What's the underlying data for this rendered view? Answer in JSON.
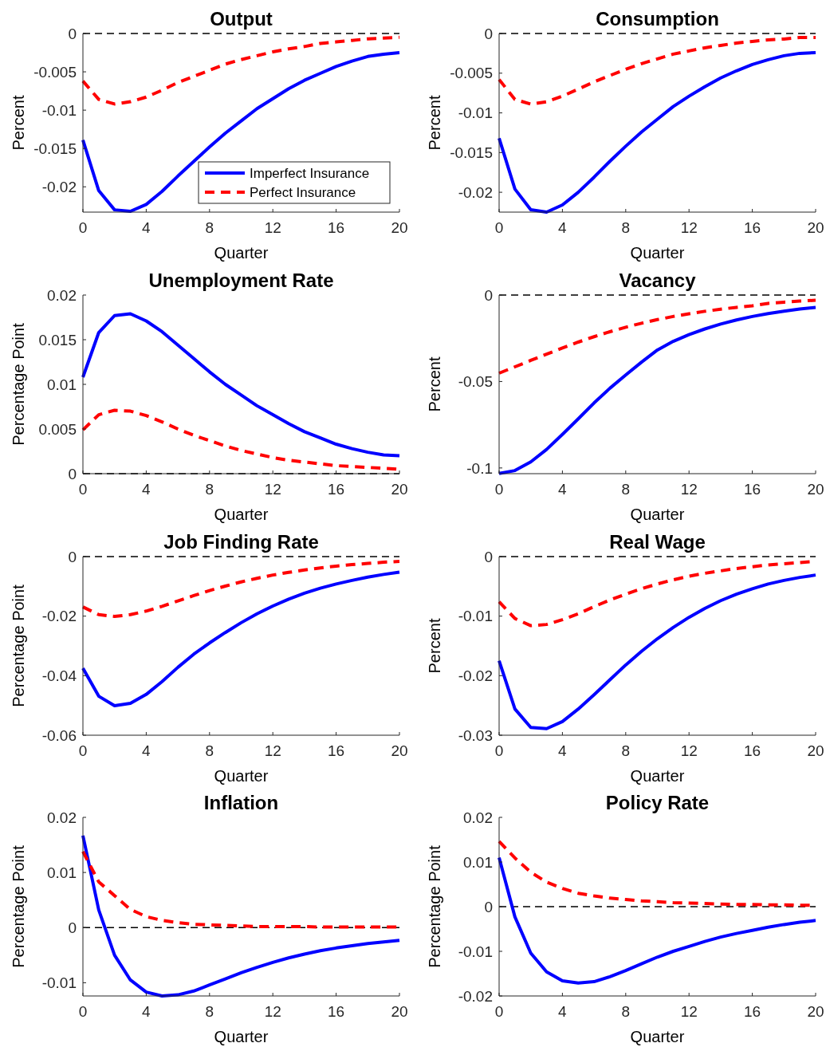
{
  "chart_data": [
    {
      "type": "line",
      "title": "Output",
      "xlabel": "Quarter",
      "ylabel": "Percent",
      "x": [
        0,
        1,
        2,
        3,
        4,
        5,
        6,
        7,
        8,
        9,
        10,
        11,
        12,
        13,
        14,
        15,
        16,
        17,
        18,
        19,
        20
      ],
      "xlim": [
        0,
        20
      ],
      "xticks": [
        0,
        4,
        8,
        12,
        16,
        20
      ],
      "ylim": [
        -0.0233,
        0
      ],
      "yticks": [
        -0.02,
        -0.015,
        -0.01,
        -0.005,
        0
      ],
      "legend": "bottom right",
      "ref_lines": [
        {
          "axis": "y",
          "value": 0,
          "color": "#000000",
          "line_style": "dashed"
        }
      ],
      "series": [
        {
          "name": "Imperfect Insurance",
          "color": "#0000ff",
          "line_style": "solid",
          "values": [
            -0.0139,
            -0.0205,
            -0.023,
            -0.0232,
            -0.0223,
            -0.0206,
            -0.0186,
            -0.0167,
            -0.0148,
            -0.013,
            -0.0114,
            -0.0098,
            -0.0085,
            -0.0072,
            -0.0061,
            -0.0052,
            -0.0043,
            -0.0036,
            -0.003,
            -0.0027,
            -0.0025
          ]
        },
        {
          "name": "Perfect Insurance",
          "color": "#ff0000",
          "line_style": "dashed",
          "values": [
            -0.0062,
            -0.0086,
            -0.0092,
            -0.0089,
            -0.0083,
            -0.0074,
            -0.0064,
            -0.0056,
            -0.0048,
            -0.004,
            -0.0034,
            -0.0029,
            -0.0024,
            -0.002,
            -0.0017,
            -0.0013,
            -0.0011,
            -0.0009,
            -0.0007,
            -0.0006,
            -0.0005
          ]
        }
      ]
    },
    {
      "type": "line",
      "title": "Consumption",
      "xlabel": "Quarter",
      "ylabel": "Percent",
      "x": [
        0,
        1,
        2,
        3,
        4,
        5,
        6,
        7,
        8,
        9,
        10,
        11,
        12,
        13,
        14,
        15,
        16,
        17,
        18,
        19,
        20
      ],
      "xlim": [
        0,
        20
      ],
      "xticks": [
        0,
        4,
        8,
        12,
        16,
        20
      ],
      "ylim": [
        -0.0225,
        0
      ],
      "yticks": [
        -0.02,
        -0.015,
        -0.01,
        -0.005,
        0
      ],
      "ref_lines": [
        {
          "axis": "y",
          "value": 0,
          "color": "#000000",
          "line_style": "dashed"
        }
      ],
      "series": [
        {
          "color": "#0000ff",
          "line_style": "solid",
          "values": [
            -0.0132,
            -0.0196,
            -0.0222,
            -0.0225,
            -0.0216,
            -0.02,
            -0.0181,
            -0.0161,
            -0.0142,
            -0.0124,
            -0.0108,
            -0.0092,
            -0.0079,
            -0.0067,
            -0.0056,
            -0.0047,
            -0.0039,
            -0.0033,
            -0.0028,
            -0.0025,
            -0.0024
          ]
        },
        {
          "color": "#ff0000",
          "line_style": "dashed",
          "values": [
            -0.0058,
            -0.0083,
            -0.0089,
            -0.0086,
            -0.0079,
            -0.007,
            -0.0061,
            -0.0053,
            -0.0045,
            -0.0038,
            -0.0032,
            -0.0026,
            -0.0022,
            -0.0018,
            -0.0015,
            -0.0012,
            -0.001,
            -0.0008,
            -0.0007,
            -0.0005,
            -0.0005
          ]
        }
      ]
    },
    {
      "type": "line",
      "title": "Unemployment Rate",
      "xlabel": "Quarter",
      "ylabel": "Percentage Point",
      "x": [
        0,
        1,
        2,
        3,
        4,
        5,
        6,
        7,
        8,
        9,
        10,
        11,
        12,
        13,
        14,
        15,
        16,
        17,
        18,
        19,
        20
      ],
      "xlim": [
        0,
        20
      ],
      "xticks": [
        0,
        4,
        8,
        12,
        16,
        20
      ],
      "ylim": [
        0,
        0.02
      ],
      "yticks": [
        0,
        0.005,
        0.01,
        0.015,
        0.02
      ],
      "ref_lines": [
        {
          "axis": "y",
          "value": 0,
          "color": "#000000",
          "line_style": "dashed"
        }
      ],
      "series": [
        {
          "color": "#0000ff",
          "line_style": "solid",
          "values": [
            0.0108,
            0.0158,
            0.0177,
            0.0179,
            0.0171,
            0.0159,
            0.0144,
            0.0129,
            0.0114,
            0.01,
            0.0088,
            0.0076,
            0.0066,
            0.0056,
            0.0047,
            0.004,
            0.0033,
            0.0028,
            0.0024,
            0.0021,
            0.002
          ]
        },
        {
          "color": "#ff0000",
          "line_style": "dashed",
          "values": [
            0.0049,
            0.0066,
            0.0071,
            0.007,
            0.0065,
            0.0058,
            0.005,
            0.0043,
            0.0037,
            0.0031,
            0.0026,
            0.0022,
            0.0018,
            0.0015,
            0.0013,
            0.0011,
            0.0009,
            0.0008,
            0.0007,
            0.0006,
            0.0005
          ]
        }
      ]
    },
    {
      "type": "line",
      "title": "Vacancy",
      "xlabel": "Quarter",
      "ylabel": "Percent",
      "x": [
        0,
        1,
        2,
        3,
        4,
        5,
        6,
        7,
        8,
        9,
        10,
        11,
        12,
        13,
        14,
        15,
        16,
        17,
        18,
        19,
        20
      ],
      "xlim": [
        0,
        20
      ],
      "xticks": [
        0,
        4,
        8,
        12,
        16,
        20
      ],
      "ylim": [
        -0.1033,
        0
      ],
      "yticks": [
        -0.1,
        -0.05,
        0
      ],
      "ref_lines": [
        {
          "axis": "y",
          "value": 0,
          "color": "#000000",
          "line_style": "dashed"
        }
      ],
      "series": [
        {
          "color": "#0000ff",
          "line_style": "solid",
          "values": [
            -0.1032,
            -0.1015,
            -0.0965,
            -0.0893,
            -0.0806,
            -0.0716,
            -0.0624,
            -0.0539,
            -0.0462,
            -0.0388,
            -0.0318,
            -0.0268,
            -0.0229,
            -0.0196,
            -0.0168,
            -0.0144,
            -0.0124,
            -0.0107,
            -0.0093,
            -0.0081,
            -0.0072
          ]
        },
        {
          "color": "#ff0000",
          "line_style": "dashed",
          "values": [
            -0.0452,
            -0.0415,
            -0.0378,
            -0.0342,
            -0.0306,
            -0.0272,
            -0.0241,
            -0.0212,
            -0.0186,
            -0.0163,
            -0.0142,
            -0.0124,
            -0.0108,
            -0.0094,
            -0.0082,
            -0.0071,
            -0.0062,
            -0.0048,
            -0.0041,
            -0.0035,
            -0.003
          ]
        }
      ]
    },
    {
      "type": "line",
      "title": "Job Finding Rate",
      "xlabel": "Quarter",
      "ylabel": "Percentage Point",
      "x": [
        0,
        1,
        2,
        3,
        4,
        5,
        6,
        7,
        8,
        9,
        10,
        11,
        12,
        13,
        14,
        15,
        16,
        17,
        18,
        19,
        20
      ],
      "xlim": [
        0,
        20
      ],
      "xticks": [
        0,
        4,
        8,
        12,
        16,
        20
      ],
      "ylim": [
        -0.06,
        0
      ],
      "yticks": [
        -0.06,
        -0.04,
        -0.02,
        0
      ],
      "ref_lines": [
        {
          "axis": "y",
          "value": 0,
          "color": "#000000",
          "line_style": "dashed"
        }
      ],
      "series": [
        {
          "color": "#0000ff",
          "line_style": "solid",
          "values": [
            -0.0375,
            -0.0469,
            -0.0501,
            -0.0493,
            -0.0463,
            -0.042,
            -0.0372,
            -0.0328,
            -0.029,
            -0.0255,
            -0.0222,
            -0.0192,
            -0.0166,
            -0.0143,
            -0.0123,
            -0.0106,
            -0.0092,
            -0.008,
            -0.0069,
            -0.006,
            -0.0052
          ]
        },
        {
          "color": "#ff0000",
          "line_style": "dashed",
          "values": [
            -0.0169,
            -0.0195,
            -0.0201,
            -0.0195,
            -0.0183,
            -0.0167,
            -0.0149,
            -0.0131,
            -0.0114,
            -0.0099,
            -0.0085,
            -0.0073,
            -0.0062,
            -0.0053,
            -0.0045,
            -0.0038,
            -0.0032,
            -0.0027,
            -0.0023,
            -0.0019,
            -0.0016
          ]
        }
      ]
    },
    {
      "type": "line",
      "title": "Real Wage",
      "xlabel": "Quarter",
      "ylabel": "Percent",
      "x": [
        0,
        1,
        2,
        3,
        4,
        5,
        6,
        7,
        8,
        9,
        10,
        11,
        12,
        13,
        14,
        15,
        16,
        17,
        18,
        19,
        20
      ],
      "xlim": [
        0,
        20
      ],
      "xticks": [
        0,
        4,
        8,
        12,
        16,
        20
      ],
      "ylim": [
        -0.03,
        0
      ],
      "yticks": [
        -0.03,
        -0.02,
        -0.01,
        0
      ],
      "ref_lines": [
        {
          "axis": "y",
          "value": 0,
          "color": "#000000",
          "line_style": "dashed"
        }
      ],
      "series": [
        {
          "color": "#0000ff",
          "line_style": "solid",
          "values": [
            -0.0175,
            -0.0256,
            -0.0287,
            -0.0289,
            -0.0277,
            -0.0256,
            -0.0232,
            -0.0207,
            -0.0182,
            -0.0159,
            -0.0138,
            -0.0119,
            -0.0102,
            -0.0087,
            -0.0074,
            -0.0063,
            -0.0054,
            -0.0046,
            -0.004,
            -0.0035,
            -0.0031
          ]
        },
        {
          "color": "#ff0000",
          "line_style": "dashed",
          "values": [
            -0.0076,
            -0.0104,
            -0.0116,
            -0.0114,
            -0.0106,
            -0.0096,
            -0.0084,
            -0.0073,
            -0.0063,
            -0.0054,
            -0.0046,
            -0.0039,
            -0.0033,
            -0.0028,
            -0.0024,
            -0.002,
            -0.0017,
            -0.0014,
            -0.0012,
            -0.001,
            -0.0008
          ]
        }
      ]
    },
    {
      "type": "line",
      "title": "Inflation",
      "xlabel": "Quarter",
      "ylabel": "Percentage Point",
      "x": [
        0,
        1,
        2,
        3,
        4,
        5,
        6,
        7,
        8,
        9,
        10,
        11,
        12,
        13,
        14,
        15,
        16,
        17,
        18,
        19,
        20
      ],
      "xlim": [
        0,
        20
      ],
      "xticks": [
        0,
        4,
        8,
        12,
        16,
        20
      ],
      "ylim": [
        -0.0124,
        0.02
      ],
      "yticks": [
        -0.01,
        0,
        0.01,
        0.02
      ],
      "ref_lines": [
        {
          "axis": "y",
          "value": 0,
          "color": "#000000",
          "line_style": "dashed"
        }
      ],
      "series": [
        {
          "color": "#0000ff",
          "line_style": "solid",
          "values": [
            0.0167,
            0.0032,
            -0.005,
            -0.0095,
            -0.0117,
            -0.0124,
            -0.0122,
            -0.0115,
            -0.0104,
            -0.0093,
            -0.0082,
            -0.0072,
            -0.0063,
            -0.0055,
            -0.0048,
            -0.0042,
            -0.0037,
            -0.0033,
            -0.0029,
            -0.0026,
            -0.0023
          ]
        },
        {
          "color": "#ff0000",
          "line_style": "dashed",
          "values": [
            0.0138,
            0.0083,
            0.0058,
            0.0033,
            0.002,
            0.0013,
            0.0009,
            0.0006,
            0.0005,
            0.0004,
            0.0003,
            0.0002,
            0.0002,
            0.0002,
            0.0002,
            0.0001,
            0.0001,
            0.0001,
            0.0001,
            0.0001,
            0.0001
          ]
        }
      ]
    },
    {
      "type": "line",
      "title": "Policy Rate",
      "xlabel": "Quarter",
      "ylabel": "Percentage Point",
      "x": [
        0,
        1,
        2,
        3,
        4,
        5,
        6,
        7,
        8,
        9,
        10,
        11,
        12,
        13,
        14,
        15,
        16,
        17,
        18,
        19,
        20
      ],
      "xlim": [
        0,
        20
      ],
      "xticks": [
        0,
        4,
        8,
        12,
        16,
        20
      ],
      "ylim": [
        -0.02,
        0.02
      ],
      "yticks": [
        -0.02,
        -0.01,
        0,
        0.01,
        0.02
      ],
      "ref_lines": [
        {
          "axis": "y",
          "value": 0,
          "color": "#000000",
          "line_style": "dashed"
        }
      ],
      "series": [
        {
          "color": "#0000ff",
          "line_style": "solid",
          "values": [
            0.011,
            -0.0023,
            -0.0104,
            -0.0146,
            -0.0166,
            -0.0171,
            -0.0168,
            -0.0157,
            -0.0143,
            -0.0128,
            -0.0113,
            -0.01,
            -0.0089,
            -0.0078,
            -0.0068,
            -0.006,
            -0.0053,
            -0.0046,
            -0.004,
            -0.0035,
            -0.0031
          ]
        },
        {
          "color": "#ff0000",
          "line_style": "dashed",
          "values": [
            0.0146,
            0.0109,
            0.0077,
            0.0055,
            0.0041,
            0.003,
            0.0024,
            0.0019,
            0.0016,
            0.0013,
            0.0011,
            0.0009,
            0.0008,
            0.0007,
            0.0006,
            0.0005,
            0.0005,
            0.0004,
            0.0004,
            0.0003,
            0.0003
          ]
        }
      ]
    }
  ]
}
